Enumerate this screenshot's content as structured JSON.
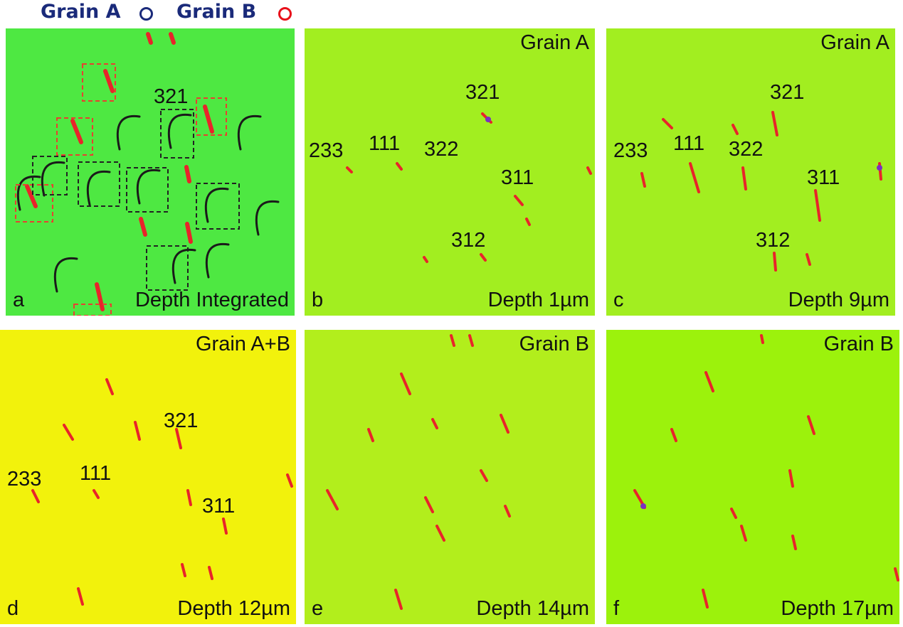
{
  "legend": {
    "grain_a": {
      "label": "Grain A",
      "color": "#1a2a7a"
    },
    "grain_b": {
      "label": "Grain B",
      "color": "#e8101a"
    }
  },
  "colors": {
    "defect": "#e8242a",
    "defect_dark": "#1a1a1a",
    "accent": "#7a30c0",
    "box_red": "#e84030",
    "box_black": "#222222"
  },
  "panels": [
    {
      "id": "a",
      "letter": "a",
      "depth": "Depth Integrated",
      "grain": "",
      "background": "#4ee842",
      "labels": [
        "321"
      ]
    },
    {
      "id": "b",
      "letter": "b",
      "depth": "Depth  1µm",
      "grain": "Grain A",
      "background": "#a2ee20",
      "labels": [
        "321",
        "233",
        "111",
        "322",
        "311",
        "312"
      ]
    },
    {
      "id": "c",
      "letter": "c",
      "depth": "Depth  9µm",
      "grain": "Grain A",
      "background": "#a2ee20",
      "labels": [
        "321",
        "233",
        "111",
        "322",
        "311",
        "312"
      ]
    },
    {
      "id": "d",
      "letter": "d",
      "depth": "Depth 12µm",
      "grain": "Grain A+B",
      "background": "#f2f20c",
      "labels": [
        "321",
        "233",
        "111",
        "311"
      ]
    },
    {
      "id": "e",
      "letter": "e",
      "depth": "Depth 14µm",
      "grain": "Grain B",
      "background": "#b2ee1c",
      "labels": [
        "",
        "",
        "",
        "",
        "",
        ""
      ]
    },
    {
      "id": "f",
      "letter": "f",
      "depth": "Depth 17µm",
      "grain": "Grain B",
      "background": "#9cf20c",
      "labels": [
        "",
        "",
        "",
        "",
        "",
        ""
      ]
    }
  ]
}
